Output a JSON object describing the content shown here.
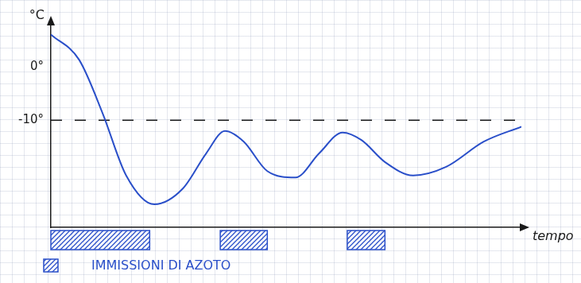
{
  "chart_data": {
    "type": "line",
    "y_label": "°C",
    "x_label": "tempo",
    "x": [
      0,
      6,
      11,
      16,
      22,
      28,
      33,
      37,
      41,
      46,
      52,
      57,
      62,
      66,
      71,
      77,
      84,
      92,
      100
    ],
    "values": [
      6,
      1.3,
      -8.7,
      -20.3,
      -25.7,
      -22.8,
      -16.2,
      -12,
      -14,
      -19.5,
      -20.7,
      -16.2,
      -12.3,
      -13.7,
      -17.8,
      -20.3,
      -18.7,
      -14,
      -11.2
    ],
    "color": "#2a4fc9",
    "xlim": [
      0,
      100
    ],
    "ylim": [
      -30,
      8
    ],
    "yticks": [
      {
        "value": -10,
        "label": "-10°"
      },
      {
        "value": 0,
        "label": "0°"
      }
    ],
    "tick_labels": "y",
    "grid": false,
    "threshold": {
      "value": -10,
      "line_style": "dashed"
    },
    "injections": {
      "label": "IMMISSIONI DI AZOTO",
      "intervals": [
        [
          0,
          21
        ],
        [
          36,
          46
        ],
        [
          63,
          71
        ]
      ],
      "color": "#2a4fc9"
    },
    "legend": "bottom left"
  }
}
